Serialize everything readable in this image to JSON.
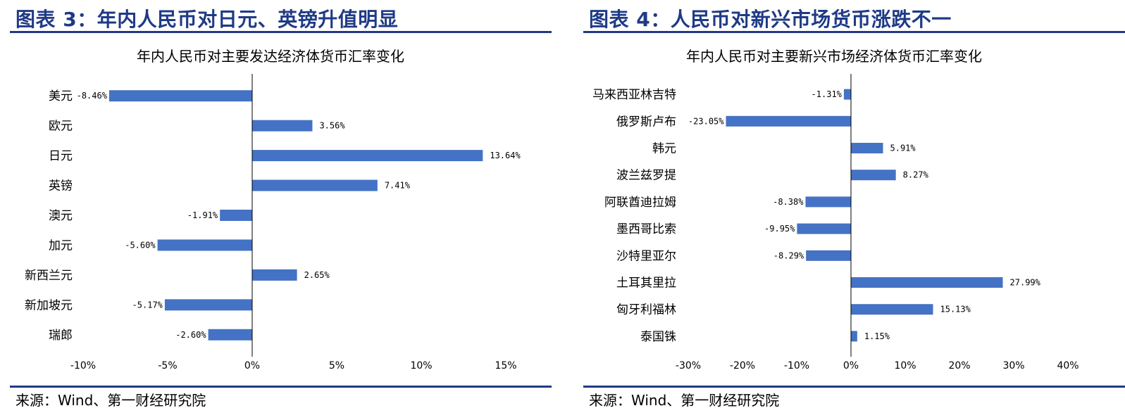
{
  "left": {
    "figure_title": "图表 3：年内人民币对日元、英镑升值明显",
    "source": "来源：Wind、第一财经研究院"
  },
  "right": {
    "figure_title": "图表 4：人民币对新兴市场货币涨跌不一",
    "source": "来源：Wind、第一财经研究院"
  },
  "chart_data": [
    {
      "type": "bar",
      "orientation": "horizontal",
      "title": "年内人民币对主要发达经济体货币汇率变化",
      "categories": [
        "美元",
        "欧元",
        "日元",
        "英镑",
        "澳元",
        "加元",
        "新西兰元",
        "新加坡元",
        "瑞郎"
      ],
      "values": [
        -8.46,
        3.56,
        13.64,
        7.41,
        -1.91,
        -5.6,
        2.65,
        -5.17,
        -2.6
      ],
      "value_labels": [
        "-8.46%",
        "3.56%",
        "13.64%",
        "7.41%",
        "-1.91%",
        "-5.60%",
        "2.65%",
        "-5.17%",
        "-2.60%"
      ],
      "xlim": [
        -10,
        15
      ],
      "x_ticks": [
        -10,
        -5,
        0,
        5,
        10,
        15
      ],
      "x_tick_labels": [
        "-10%",
        "-5%",
        "0%",
        "5%",
        "10%",
        "15%"
      ],
      "bar_color": "#4472c4",
      "grid": false,
      "legend": "none"
    },
    {
      "type": "bar",
      "orientation": "horizontal",
      "title": "年内人民币对主要新兴市场经济体货币汇率变化",
      "categories": [
        "马来西亚林吉特",
        "俄罗斯卢布",
        "韩元",
        "波兰兹罗提",
        "阿联酋迪拉姆",
        "墨西哥比索",
        "沙特里亚尔",
        "土耳其里拉",
        "匈牙利福林",
        "泰国铢"
      ],
      "values": [
        -1.31,
        -23.05,
        5.91,
        8.27,
        -8.38,
        -9.95,
        -8.29,
        27.99,
        15.13,
        1.15
      ],
      "value_labels": [
        "-1.31%",
        "-23.05%",
        "5.91%",
        "8.27%",
        "-8.38%",
        "-9.95%",
        "-8.29%",
        "27.99%",
        "15.13%",
        "1.15%"
      ],
      "xlim": [
        -30,
        40
      ],
      "x_ticks": [
        -30,
        -20,
        -10,
        0,
        10,
        20,
        30,
        40
      ],
      "x_tick_labels": [
        "-30%",
        "-20%",
        "-10%",
        "0%",
        "10%",
        "20%",
        "30%",
        "40%"
      ],
      "bar_color": "#4472c4",
      "grid": false,
      "legend": "none"
    }
  ]
}
